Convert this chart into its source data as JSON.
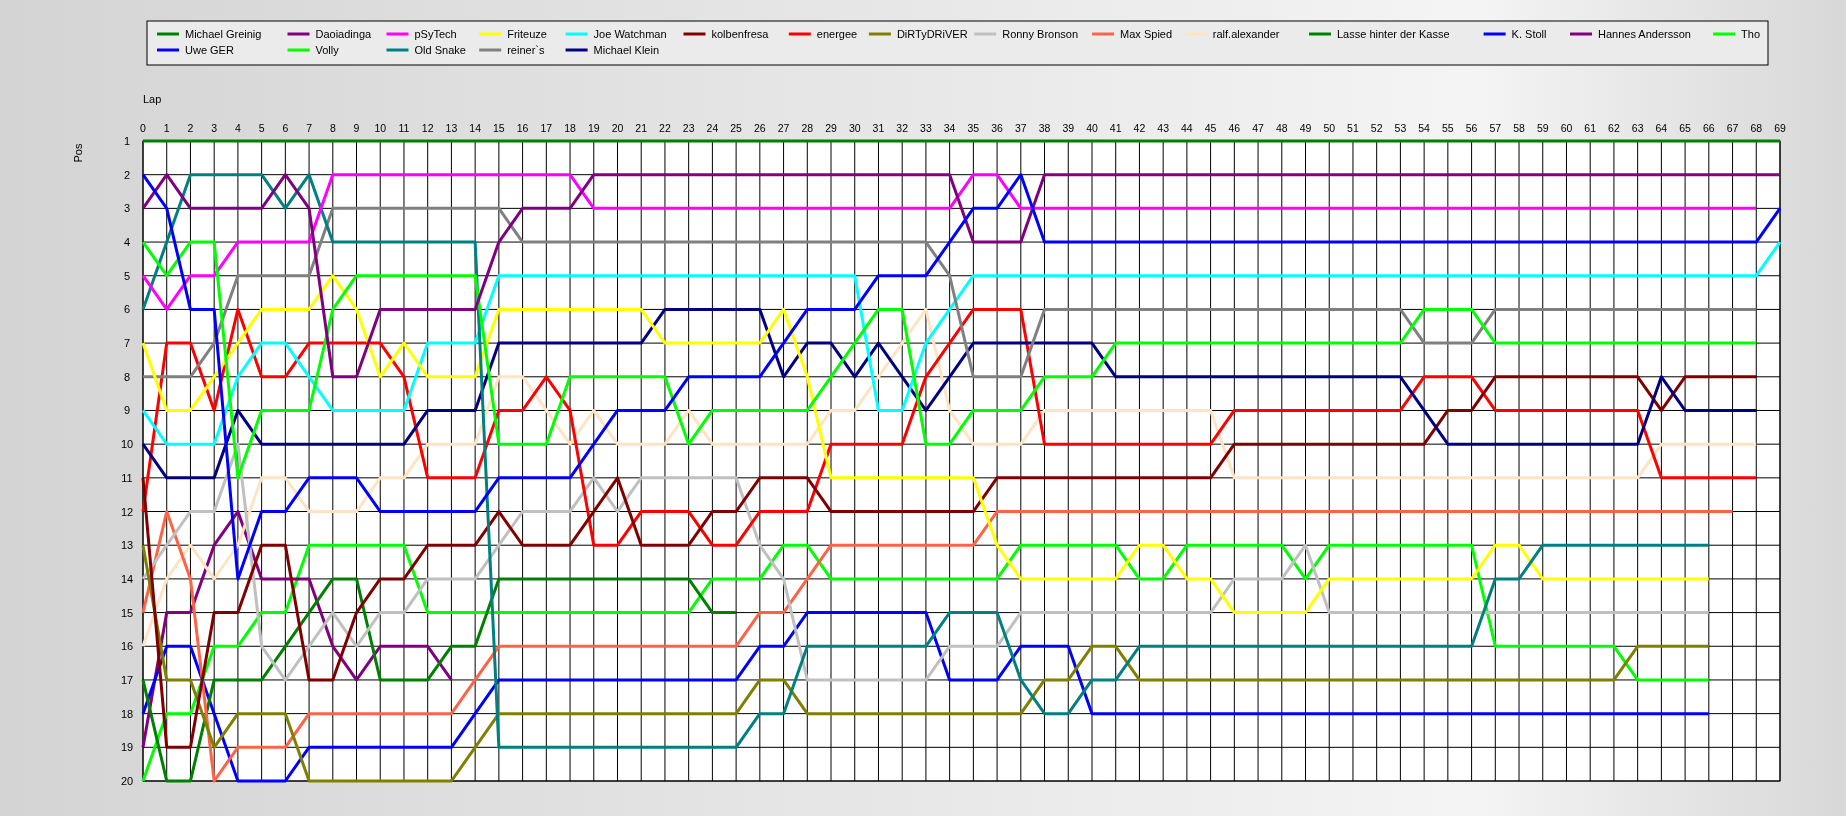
{
  "chart_data": {
    "type": "line",
    "xlabel": "Lap",
    "ylabel": "Pos",
    "ylim": [
      20,
      1
    ],
    "x": [
      0,
      1,
      2,
      3,
      4,
      5,
      6,
      7,
      8,
      9,
      10,
      11,
      12,
      13,
      14,
      15,
      16,
      17,
      18,
      19,
      20,
      21,
      22,
      23,
      24,
      25,
      26,
      27,
      28,
      29,
      30,
      31,
      32,
      33,
      34,
      35,
      36,
      37,
      38,
      39,
      40,
      41,
      42,
      43,
      44,
      45,
      46,
      47,
      48,
      49,
      50,
      51,
      52,
      53,
      54,
      55,
      56,
      57,
      58,
      59,
      60,
      61,
      62,
      63,
      64,
      65,
      66,
      67,
      68,
      69
    ],
    "xlim": [
      0,
      69
    ],
    "xticks": [
      0,
      1,
      2,
      3,
      4,
      5,
      6,
      7,
      8,
      9,
      10,
      11,
      12,
      13,
      14,
      15,
      16,
      17,
      18,
      19,
      20,
      21,
      22,
      23,
      24,
      25,
      26,
      27,
      28,
      29,
      30,
      31,
      32,
      33,
      34,
      35,
      36,
      37,
      38,
      39,
      40,
      41,
      42,
      43,
      44,
      45,
      46,
      47,
      48,
      49,
      50,
      51,
      52,
      53,
      54,
      55,
      56,
      57,
      58,
      59,
      60,
      61,
      62,
      63,
      64,
      65,
      66,
      67,
      68,
      69
    ],
    "yticks": [
      1,
      2,
      3,
      4,
      5,
      6,
      7,
      8,
      9,
      10,
      11,
      12,
      13,
      14,
      15,
      16,
      17,
      18,
      19,
      20
    ],
    "grid": true,
    "legend": "top",
    "series": [
      {
        "name": "Michael Greinig",
        "color": "#008000",
        "values": [
          1,
          1,
          1,
          1,
          1,
          1,
          1,
          1,
          1,
          1,
          1,
          1,
          1,
          1,
          1,
          1,
          1,
          1,
          1,
          1,
          1,
          1,
          1,
          1,
          1,
          1,
          1,
          1,
          1,
          1,
          1,
          1,
          1,
          1,
          1,
          1,
          1,
          1,
          1,
          1,
          1,
          1,
          1,
          1,
          1,
          1,
          1,
          1,
          1,
          1,
          1,
          1,
          1,
          1,
          1,
          1,
          1,
          1,
          1,
          1,
          1,
          1,
          1,
          1,
          1,
          1,
          1,
          1,
          1,
          1
        ]
      },
      {
        "name": "Uwe GER",
        "color": "#0000ff",
        "values": [
          2,
          3,
          6,
          6,
          14,
          12,
          12,
          11,
          11,
          11,
          12,
          12,
          12,
          12,
          12,
          11,
          11,
          11,
          11,
          10,
          9,
          9,
          9,
          8,
          8,
          8,
          8,
          7,
          6,
          6,
          6,
          5,
          5,
          5,
          4,
          3,
          3,
          2,
          4,
          4,
          4,
          4,
          4,
          4,
          4,
          4,
          4,
          4,
          4,
          4,
          4,
          4,
          4,
          4,
          4,
          4,
          4,
          4,
          4,
          4,
          4,
          4,
          4,
          4,
          4,
          4,
          4,
          4,
          4,
          3
        ]
      },
      {
        "name": "Daoiadinga",
        "color": "#800080",
        "values": [
          3,
          2,
          3,
          3,
          3,
          3,
          2,
          3,
          8,
          8,
          6,
          6,
          6,
          6,
          6,
          4,
          3,
          3,
          3,
          2,
          2,
          2,
          2,
          2,
          2,
          2,
          2,
          2,
          2,
          2,
          2,
          2,
          2,
          2,
          2,
          4,
          4,
          4,
          2,
          2,
          2,
          2,
          2,
          2,
          2,
          2,
          2,
          2,
          2,
          2,
          2,
          2,
          2,
          2,
          2,
          2,
          2,
          2,
          2,
          2,
          2,
          2,
          2,
          2,
          2,
          2,
          2,
          2,
          2,
          2
        ]
      },
      {
        "name": "Volly",
        "color": "#00ff00",
        "values": [
          4,
          5,
          4,
          4,
          11,
          9,
          9,
          9,
          6,
          5,
          5,
          5,
          5,
          5,
          5,
          10,
          10,
          10,
          8,
          8,
          8,
          8,
          8,
          10,
          9,
          9,
          9,
          9,
          9,
          8,
          7,
          6,
          6,
          10,
          10,
          9,
          9,
          9,
          8,
          8,
          8,
          7,
          7,
          7,
          7,
          7,
          7,
          7,
          7,
          7,
          7,
          7,
          7,
          7,
          6,
          6,
          6,
          7,
          7,
          7,
          7,
          7,
          7,
          7,
          7,
          7,
          7,
          7,
          7,
          null
        ]
      },
      {
        "name": "pSyTech",
        "color": "#ff00ff",
        "values": [
          5,
          6,
          5,
          5,
          4,
          4,
          4,
          4,
          2,
          2,
          2,
          2,
          2,
          2,
          2,
          2,
          2,
          2,
          2,
          3,
          3,
          3,
          3,
          3,
          3,
          3,
          3,
          3,
          3,
          3,
          3,
          3,
          3,
          3,
          3,
          2,
          2,
          3,
          3,
          3,
          3,
          3,
          3,
          3,
          3,
          3,
          3,
          3,
          3,
          3,
          3,
          3,
          3,
          3,
          3,
          3,
          3,
          3,
          3,
          3,
          3,
          3,
          3,
          3,
          3,
          3,
          3,
          3,
          3,
          null
        ]
      },
      {
        "name": "Old Snake",
        "color": "#008080",
        "values": [
          6,
          4,
          2,
          2,
          2,
          2,
          3,
          2,
          4,
          4,
          4,
          4,
          4,
          4,
          4,
          19,
          19,
          19,
          19,
          19,
          19,
          19,
          19,
          19,
          19,
          19,
          18,
          18,
          16,
          16,
          16,
          16,
          16,
          16,
          15,
          15,
          15,
          17,
          18,
          18,
          17,
          17,
          16,
          16,
          16,
          16,
          16,
          16,
          16,
          16,
          16,
          16,
          16,
          16,
          16,
          16,
          16,
          14,
          14,
          13,
          13,
          13,
          13,
          13,
          13,
          13,
          13,
          null,
          null,
          null
        ]
      },
      {
        "name": "Friteuze",
        "color": "#ffff00",
        "values": [
          7,
          9,
          9,
          8,
          7,
          6,
          6,
          6,
          5,
          6,
          8,
          7,
          8,
          8,
          8,
          6,
          6,
          6,
          6,
          6,
          6,
          6,
          7,
          7,
          7,
          7,
          7,
          6,
          8,
          11,
          11,
          11,
          11,
          11,
          11,
          11,
          13,
          14,
          14,
          14,
          14,
          14,
          13,
          13,
          14,
          14,
          15,
          15,
          15,
          15,
          14,
          14,
          14,
          14,
          14,
          14,
          14,
          13,
          13,
          14,
          14,
          14,
          14,
          14,
          14,
          14,
          14,
          null,
          null,
          null
        ]
      },
      {
        "name": "reiner`s",
        "color": "#808080",
        "values": [
          8,
          8,
          8,
          7,
          5,
          5,
          5,
          5,
          3,
          3,
          3,
          3,
          3,
          3,
          3,
          3,
          4,
          4,
          4,
          4,
          4,
          4,
          4,
          4,
          4,
          4,
          4,
          4,
          4,
          4,
          4,
          4,
          4,
          4,
          5,
          8,
          8,
          8,
          6,
          6,
          6,
          6,
          6,
          6,
          6,
          6,
          6,
          6,
          6,
          6,
          6,
          6,
          6,
          6,
          7,
          7,
          7,
          6,
          6,
          6,
          6,
          6,
          6,
          6,
          6,
          6,
          6,
          6,
          6,
          null
        ]
      },
      {
        "name": "Joe Watchman",
        "color": "#00ffff",
        "values": [
          9,
          10,
          10,
          10,
          8,
          7,
          7,
          8,
          9,
          9,
          9,
          9,
          7,
          7,
          7,
          5,
          5,
          5,
          5,
          5,
          5,
          5,
          5,
          5,
          5,
          5,
          5,
          5,
          5,
          5,
          5,
          9,
          9,
          7,
          6,
          5,
          5,
          5,
          5,
          5,
          5,
          5,
          5,
          5,
          5,
          5,
          5,
          5,
          5,
          5,
          5,
          5,
          5,
          5,
          5,
          5,
          5,
          5,
          5,
          5,
          5,
          5,
          5,
          5,
          5,
          5,
          5,
          5,
          5,
          4
        ]
      },
      {
        "name": "Michael Klein",
        "color": "#000080",
        "values": [
          10,
          11,
          11,
          11,
          9,
          10,
          10,
          10,
          10,
          10,
          10,
          10,
          9,
          9,
          9,
          7,
          7,
          7,
          7,
          7,
          7,
          7,
          6,
          6,
          6,
          6,
          6,
          8,
          7,
          7,
          8,
          7,
          8,
          9,
          8,
          7,
          7,
          7,
          7,
          7,
          7,
          8,
          8,
          8,
          8,
          8,
          8,
          8,
          8,
          8,
          8,
          8,
          8,
          8,
          9,
          10,
          10,
          10,
          10,
          10,
          10,
          10,
          10,
          10,
          8,
          9,
          9,
          9,
          9,
          null
        ]
      },
      {
        "name": "kolbenfresa",
        "color": "#800000",
        "values": [
          11,
          19,
          19,
          15,
          15,
          13,
          13,
          17,
          17,
          15,
          14,
          14,
          13,
          13,
          13,
          12,
          13,
          13,
          13,
          12,
          11,
          13,
          13,
          13,
          12,
          12,
          11,
          11,
          11,
          12,
          12,
          12,
          12,
          12,
          12,
          12,
          11,
          11,
          11,
          11,
          11,
          11,
          11,
          11,
          11,
          11,
          10,
          10,
          10,
          10,
          10,
          10,
          10,
          10,
          10,
          9,
          9,
          8,
          8,
          8,
          8,
          8,
          8,
          8,
          9,
          8,
          8,
          8,
          8,
          null
        ]
      },
      {
        "name": "energee",
        "color": "#ff0000",
        "values": [
          12,
          7,
          7,
          9,
          6,
          8,
          8,
          7,
          7,
          7,
          7,
          8,
          11,
          11,
          11,
          9,
          9,
          8,
          9,
          13,
          13,
          12,
          12,
          12,
          13,
          13,
          12,
          12,
          12,
          10,
          10,
          10,
          10,
          8,
          7,
          6,
          6,
          6,
          10,
          10,
          10,
          10,
          10,
          10,
          10,
          10,
          9,
          9,
          9,
          9,
          9,
          9,
          9,
          9,
          8,
          8,
          8,
          9,
          9,
          9,
          9,
          9,
          9,
          9,
          11,
          11,
          11,
          11,
          11,
          null
        ]
      },
      {
        "name": "DiRTyDRiVER",
        "color": "#808000",
        "values": [
          13,
          17,
          17,
          19,
          18,
          18,
          18,
          20,
          20,
          20,
          20,
          20,
          20,
          20,
          19,
          18,
          18,
          18,
          18,
          18,
          18,
          18,
          18,
          18,
          18,
          18,
          17,
          17,
          18,
          18,
          18,
          18,
          18,
          18,
          18,
          18,
          18,
          18,
          17,
          17,
          16,
          16,
          17,
          17,
          17,
          17,
          17,
          17,
          17,
          17,
          17,
          17,
          17,
          17,
          17,
          17,
          17,
          17,
          17,
          17,
          17,
          17,
          17,
          16,
          16,
          16,
          16,
          null,
          null,
          null
        ]
      },
      {
        "name": "Ronny Bronson",
        "color": "#c0c0c0",
        "values": [
          14,
          13,
          12,
          12,
          10,
          16,
          17,
          16,
          15,
          16,
          15,
          15,
          14,
          14,
          14,
          13,
          12,
          12,
          12,
          11,
          12,
          11,
          11,
          11,
          11,
          11,
          13,
          14,
          17,
          17,
          17,
          17,
          17,
          17,
          16,
          16,
          16,
          15,
          15,
          15,
          15,
          15,
          15,
          15,
          15,
          15,
          14,
          14,
          14,
          13,
          15,
          15,
          15,
          15,
          15,
          15,
          15,
          15,
          15,
          15,
          15,
          15,
          15,
          15,
          15,
          15,
          15,
          null,
          null,
          null
        ]
      },
      {
        "name": "Max Spied",
        "color": "#ff6347",
        "values": [
          15,
          12,
          14,
          20,
          19,
          19,
          19,
          18,
          18,
          18,
          18,
          18,
          18,
          18,
          17,
          16,
          16,
          16,
          16,
          16,
          16,
          16,
          16,
          16,
          16,
          16,
          15,
          15,
          14,
          13,
          13,
          13,
          13,
          13,
          13,
          13,
          12,
          12,
          12,
          12,
          12,
          12,
          12,
          12,
          12,
          12,
          12,
          12,
          12,
          12,
          12,
          12,
          12,
          12,
          12,
          12,
          12,
          12,
          12,
          12,
          12,
          12,
          12,
          12,
          12,
          12,
          12,
          12,
          null,
          null
        ]
      },
      {
        "name": "ralf.alexander",
        "color": "#ffe4c4",
        "values": [
          16,
          14,
          13,
          14,
          13,
          11,
          11,
          12,
          12,
          12,
          11,
          11,
          10,
          10,
          10,
          8,
          8,
          9,
          10,
          9,
          10,
          10,
          10,
          9,
          10,
          10,
          10,
          10,
          10,
          9,
          9,
          8,
          7,
          6,
          9,
          10,
          10,
          10,
          9,
          9,
          9,
          9,
          9,
          9,
          9,
          9,
          11,
          11,
          11,
          11,
          11,
          11,
          11,
          11,
          11,
          11,
          11,
          11,
          11,
          11,
          11,
          11,
          11,
          11,
          10,
          10,
          10,
          10,
          10,
          null
        ]
      },
      {
        "name": "Lasse hinter der Kasse",
        "color": "#008000",
        "values": [
          17,
          20,
          20,
          17,
          17,
          17,
          16,
          15,
          14,
          14,
          17,
          17,
          17,
          16,
          16,
          14,
          14,
          14,
          14,
          14,
          14,
          14,
          14,
          14,
          15,
          15,
          null,
          null,
          null,
          null,
          null,
          null,
          null,
          null,
          null,
          null,
          null,
          null,
          null,
          null,
          null,
          null,
          null,
          null,
          null,
          null,
          null,
          null,
          null,
          null,
          null,
          null,
          null,
          null,
          null,
          null,
          null,
          null,
          null,
          null,
          null,
          null,
          null,
          null,
          null,
          null,
          null,
          null,
          null,
          null
        ]
      },
      {
        "name": "K. Stoll",
        "color": "#0000ff",
        "values": [
          18,
          16,
          16,
          18,
          20,
          20,
          20,
          19,
          19,
          19,
          19,
          19,
          19,
          19,
          18,
          17,
          17,
          17,
          17,
          17,
          17,
          17,
          17,
          17,
          17,
          17,
          16,
          16,
          15,
          15,
          15,
          15,
          15,
          15,
          17,
          17,
          17,
          16,
          16,
          16,
          18,
          18,
          18,
          18,
          18,
          18,
          18,
          18,
          18,
          18,
          18,
          18,
          18,
          18,
          18,
          18,
          18,
          18,
          18,
          18,
          18,
          18,
          18,
          18,
          18,
          18,
          18,
          null,
          null,
          null
        ]
      },
      {
        "name": "Hannes  Andersson",
        "color": "#800080",
        "values": [
          19,
          15,
          15,
          13,
          12,
          14,
          14,
          14,
          16,
          17,
          16,
          16,
          16,
          17,
          null,
          null,
          null,
          null,
          null,
          null,
          null,
          null,
          null,
          null,
          null,
          null,
          null,
          null,
          null,
          null,
          null,
          null,
          null,
          null,
          null,
          null,
          null,
          null,
          null,
          null,
          null,
          null,
          null,
          null,
          null,
          null,
          null,
          null,
          null,
          null,
          null,
          null,
          null,
          null,
          null,
          null,
          null,
          null,
          null,
          null,
          null,
          null,
          null,
          null,
          null,
          null,
          null,
          null,
          null,
          null
        ]
      },
      {
        "name": "Tho",
        "color": "#00ff00",
        "values": [
          20,
          18,
          18,
          16,
          16,
          15,
          15,
          13,
          13,
          13,
          13,
          13,
          15,
          15,
          15,
          15,
          15,
          15,
          15,
          15,
          15,
          15,
          15,
          15,
          14,
          14,
          14,
          13,
          13,
          14,
          14,
          14,
          14,
          14,
          14,
          14,
          14,
          13,
          13,
          13,
          13,
          13,
          14,
          14,
          13,
          13,
          13,
          13,
          13,
          14,
          13,
          13,
          13,
          13,
          13,
          13,
          13,
          16,
          16,
          16,
          16,
          16,
          16,
          17,
          17,
          17,
          17,
          null,
          null,
          null
        ]
      }
    ]
  }
}
